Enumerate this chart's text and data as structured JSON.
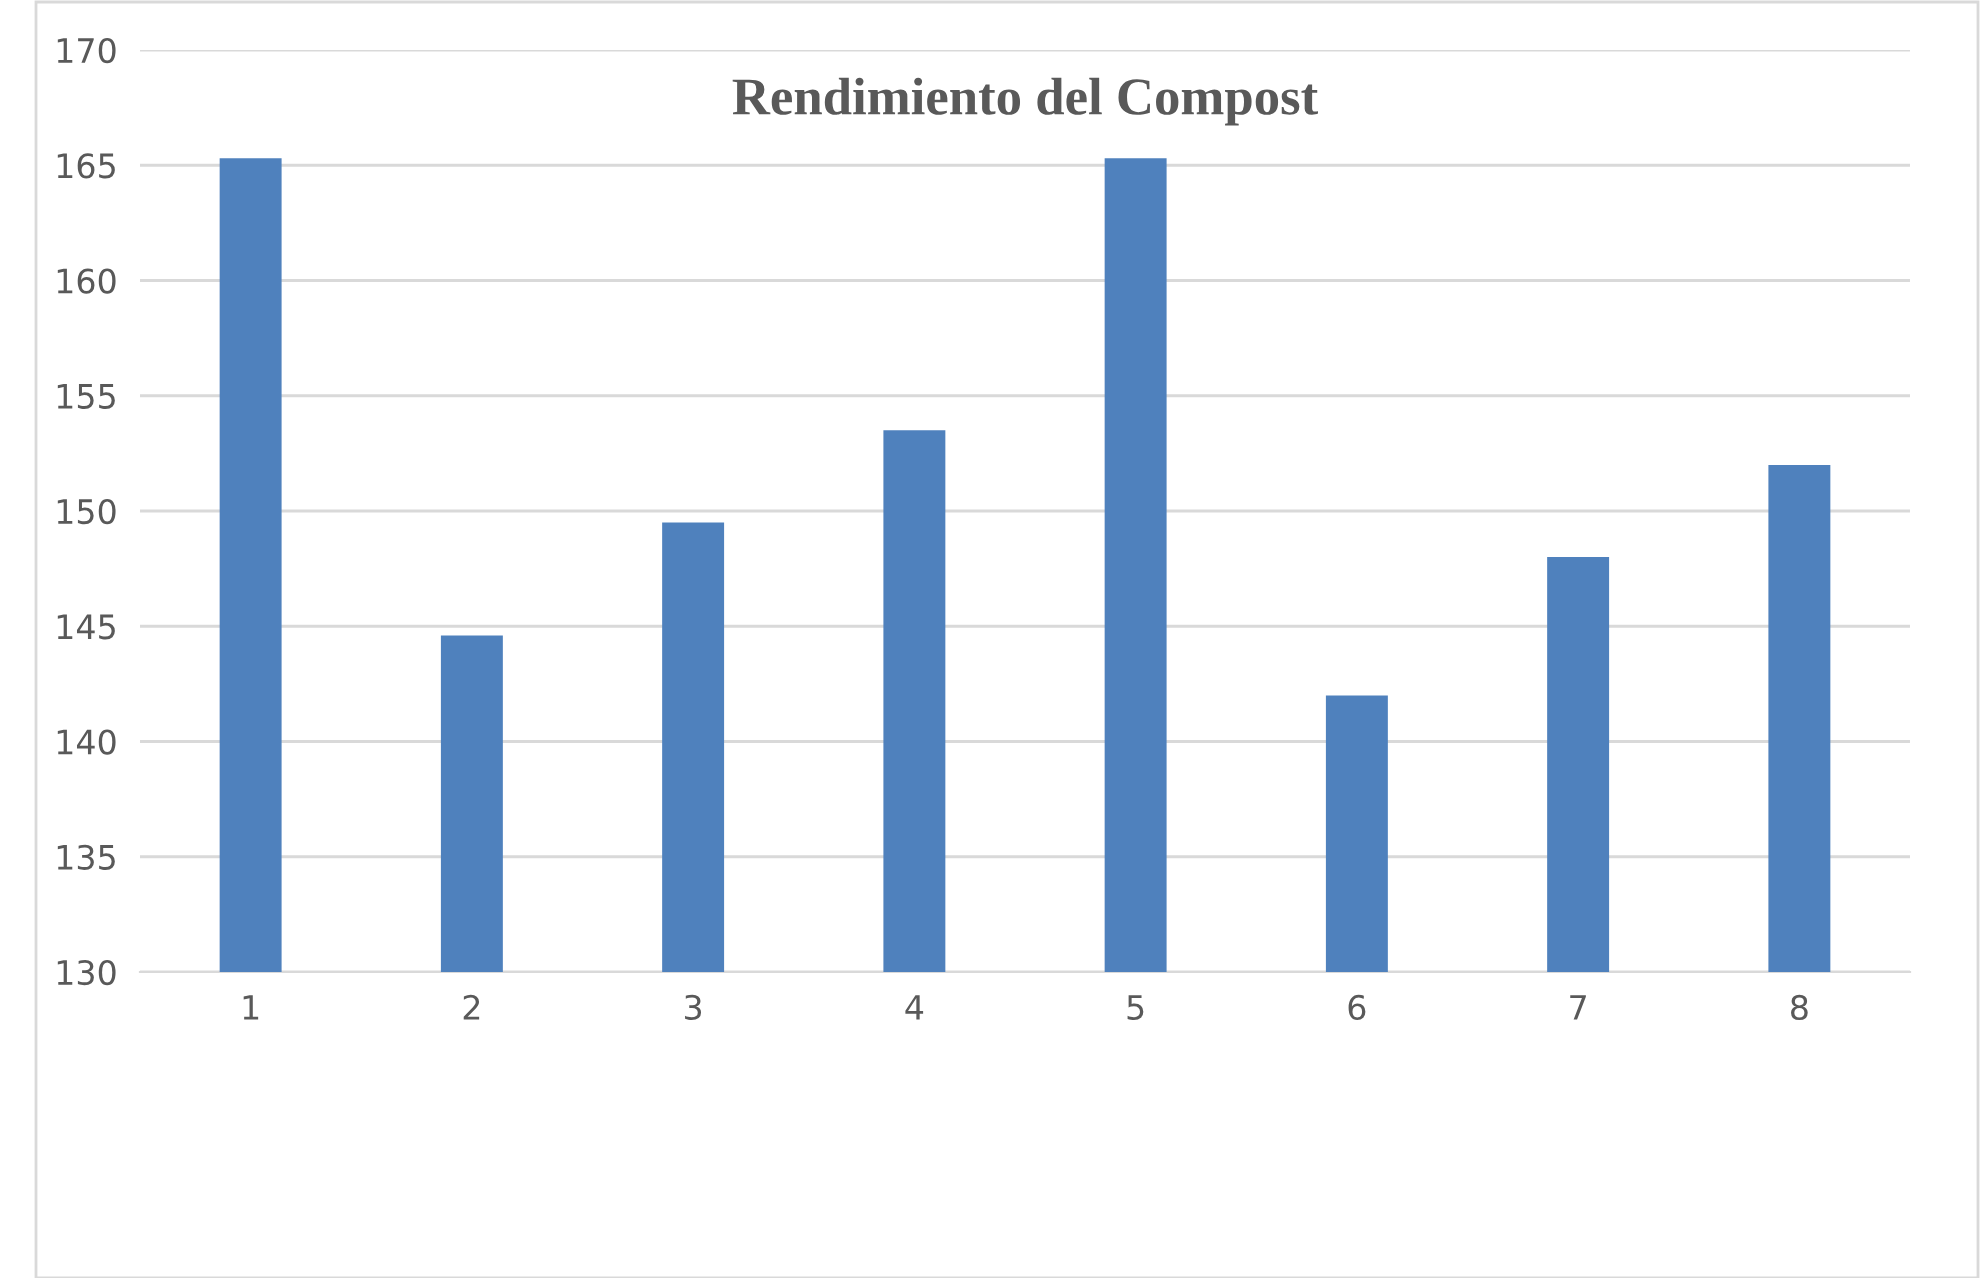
{
  "chart_data": {
    "type": "bar",
    "title": "Rendimiento del Compost",
    "categories": [
      "1",
      "2",
      "3",
      "4",
      "5",
      "6",
      "7",
      "8"
    ],
    "values": [
      165.3,
      144.6,
      149.5,
      153.5,
      165.3,
      142.0,
      148.0,
      152.0
    ],
    "color": "#4f81bd",
    "ylim": [
      130,
      170
    ],
    "yticks": [
      130,
      135,
      140,
      145,
      150,
      155,
      160,
      165,
      170
    ],
    "grid": "y",
    "legend": false
  }
}
